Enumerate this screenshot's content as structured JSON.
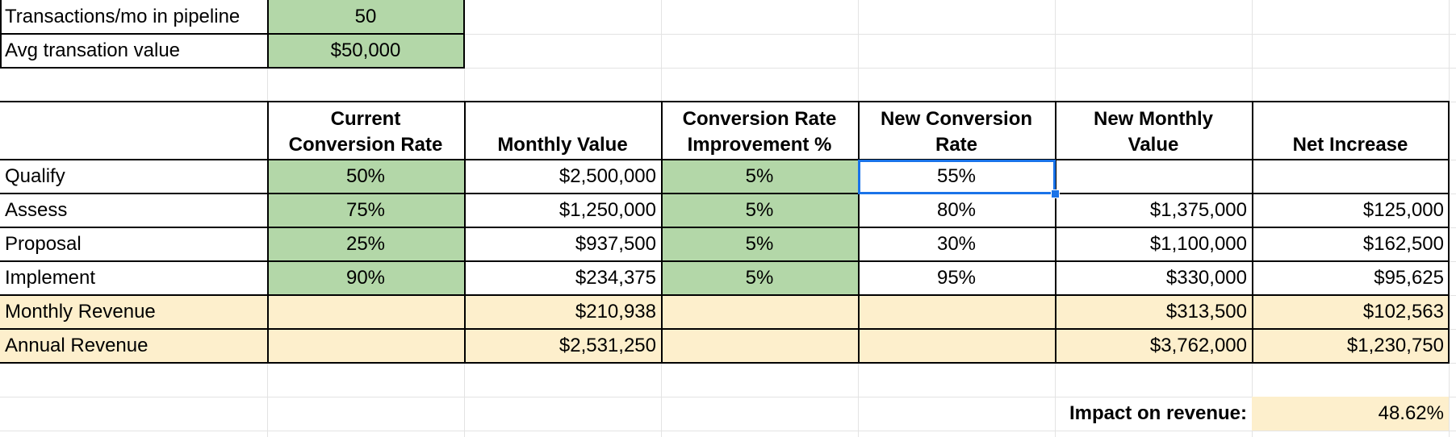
{
  "colors": {
    "input_fill": "#b3d7a8",
    "revenue_fill": "#fdefcc",
    "impact_fill": "#fdefcc",
    "selection": "#1a73e8",
    "gridline": "#e3e3e3",
    "border": "#000000"
  },
  "inputs": {
    "transactions_label": "Transactions/mo in pipeline",
    "transactions_value": "50",
    "avg_label": "Avg transation value",
    "avg_value": "$50,000"
  },
  "headers": {
    "col2": [
      "Current",
      "Conversion Rate"
    ],
    "col3": [
      "Monthly Value"
    ],
    "col4": [
      "Conversion Rate",
      "Improvement %"
    ],
    "col5": [
      "New Conversion",
      "Rate"
    ],
    "col6": [
      "New Monthly",
      "Value"
    ],
    "col7": [
      "Net Increase"
    ]
  },
  "rows": [
    {
      "stage": "Qualify",
      "current_rate": "50%",
      "monthly_value": "$2,500,000",
      "improvement": "5%",
      "new_rate": "55%",
      "new_monthly_value": "",
      "net_increase": ""
    },
    {
      "stage": "Assess",
      "current_rate": "75%",
      "monthly_value": "$1,250,000",
      "improvement": "5%",
      "new_rate": "80%",
      "new_monthly_value": "$1,375,000",
      "net_increase": "$125,000"
    },
    {
      "stage": "Proposal",
      "current_rate": "25%",
      "monthly_value": "$937,500",
      "improvement": "5%",
      "new_rate": "30%",
      "new_monthly_value": "$1,100,000",
      "net_increase": "$162,500"
    },
    {
      "stage": "Implement",
      "current_rate": "90%",
      "monthly_value": "$234,375",
      "improvement": "5%",
      "new_rate": "95%",
      "new_monthly_value": "$330,000",
      "net_increase": "$95,625"
    }
  ],
  "totals": [
    {
      "label": "Monthly Revenue",
      "monthly_value": "$210,938",
      "new_monthly_value": "$313,500",
      "net_increase": "$102,563"
    },
    {
      "label": "Annual Revenue",
      "monthly_value": "$2,531,250",
      "new_monthly_value": "$3,762,000",
      "net_increase": "$1,230,750"
    }
  ],
  "impact": {
    "label": "Impact on revenue:",
    "value": "48.62%"
  },
  "selected_cell": "new-conversion-rate-qualify"
}
